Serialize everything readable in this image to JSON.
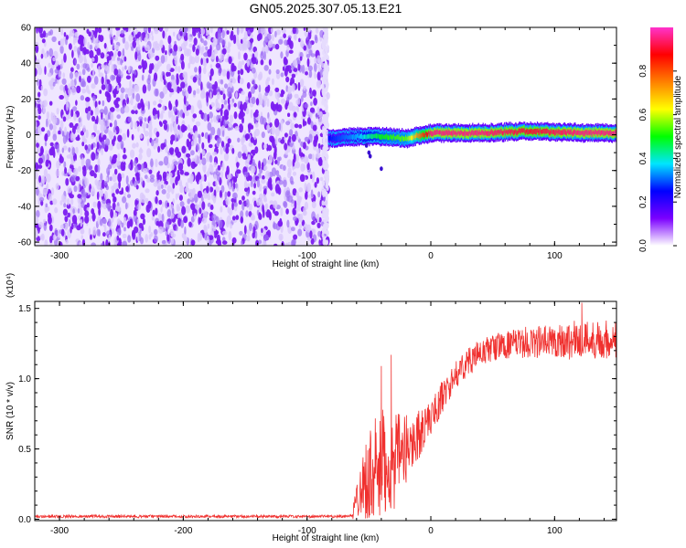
{
  "figure": {
    "title": "GN05.2025.307.05.13.E21"
  },
  "chart_data": [
    {
      "type": "heatmap",
      "title": "GN05.2025.307.05.13.E21",
      "xlabel": "Height of straight line (km)",
      "ylabel": "Frequency (Hz)",
      "xlim": [
        -320,
        150
      ],
      "ylim": [
        -62,
        60
      ],
      "x_ticks": [
        -300,
        -200,
        -100,
        0,
        100
      ],
      "x_tick_labels": [
        "-300",
        "-200",
        "-100",
        "0",
        "100"
      ],
      "y_ticks": [
        -60,
        -40,
        -20,
        0,
        20,
        40,
        60
      ],
      "y_tick_labels": [
        "-60",
        "-40",
        "-20",
        "0",
        "20",
        "40",
        "60"
      ],
      "noise_region_x": [
        -320,
        -83
      ],
      "signal_band": {
        "x_range": [
          -83,
          150
        ],
        "frequency_center_hz": 0,
        "half_width_hz": 3,
        "description_points_x": [
          -83,
          -60,
          -40,
          -20,
          0,
          40,
          80,
          120,
          150
        ],
        "description_points_freq": [
          -2,
          -1,
          -1,
          -2,
          1,
          1,
          2,
          1,
          1
        ],
        "amplitude": [
          0.25,
          0.35,
          0.5,
          0.55,
          0.95,
          0.95,
          0.9,
          0.95,
          0.95
        ]
      },
      "colorbar": {
        "label": "Normalized spectral amplitude",
        "range": [
          0,
          1
        ],
        "ticks": [
          0.0,
          0.2,
          0.4,
          0.6,
          0.8
        ],
        "tick_labels": [
          "0.0",
          "0.2",
          "0.4",
          "0.6",
          "0.8"
        ],
        "colors": [
          "#ffffff",
          "#7b00ff",
          "#0000ff",
          "#00e5ff",
          "#00ff00",
          "#ffff00",
          "#ff8000",
          "#ff0000",
          "#ff33cc"
        ]
      },
      "grid": false
    },
    {
      "type": "line",
      "xlabel": "Height of straight line (km)",
      "ylabel": "SNR (10 * v/v)",
      "scale_label": "(x10⁴)",
      "xlim": [
        -320,
        150
      ],
      "ylim": [
        -0.01,
        1.55
      ],
      "x_ticks": [
        -300,
        -200,
        -100,
        0,
        100
      ],
      "x_tick_labels": [
        "-300",
        "-200",
        "-100",
        "0",
        "100"
      ],
      "y_ticks": [
        0.0,
        0.5,
        1.0,
        1.5
      ],
      "y_tick_labels": [
        "0.0",
        "0.5",
        "1.0",
        "1.5"
      ],
      "line_color": "#f0302e",
      "series": [
        {
          "x": [
            -320,
            -200,
            -100,
            -70,
            -63,
            -60,
            -55,
            -50,
            -45,
            -40,
            -35,
            -30,
            -25,
            -20,
            -15,
            -10,
            -5,
            0,
            5,
            10,
            15,
            20,
            25,
            30,
            40,
            50,
            60,
            70,
            80,
            90,
            100,
            110,
            120,
            130,
            140,
            150
          ],
          "values": [
            0.02,
            0.02,
            0.02,
            0.02,
            0.03,
            0.15,
            0.25,
            0.3,
            0.32,
            0.35,
            0.38,
            0.4,
            0.45,
            0.5,
            0.55,
            0.6,
            0.66,
            0.72,
            0.8,
            0.88,
            0.95,
            1.02,
            1.08,
            1.12,
            1.18,
            1.22,
            1.24,
            1.25,
            1.26,
            1.26,
            1.27,
            1.27,
            1.28,
            1.28,
            1.28,
            1.28
          ],
          "noise_amplitude": [
            0.02,
            0.02,
            0.02,
            0.03,
            0.05,
            0.12,
            0.25,
            0.35,
            0.4,
            0.45,
            0.35,
            0.35,
            0.3,
            0.25,
            0.2,
            0.18,
            0.15,
            0.12,
            0.12,
            0.12,
            0.1,
            0.1,
            0.1,
            0.1,
            0.1,
            0.1,
            0.1,
            0.1,
            0.12,
            0.12,
            0.12,
            0.14,
            0.14,
            0.14,
            0.14,
            0.14
          ]
        }
      ],
      "annotations": [
        {
          "x": -40,
          "value": 1.09
        },
        {
          "x": -32,
          "value": 1.17
        },
        {
          "x": 122,
          "value": 1.54
        }
      ],
      "grid": false
    }
  ]
}
